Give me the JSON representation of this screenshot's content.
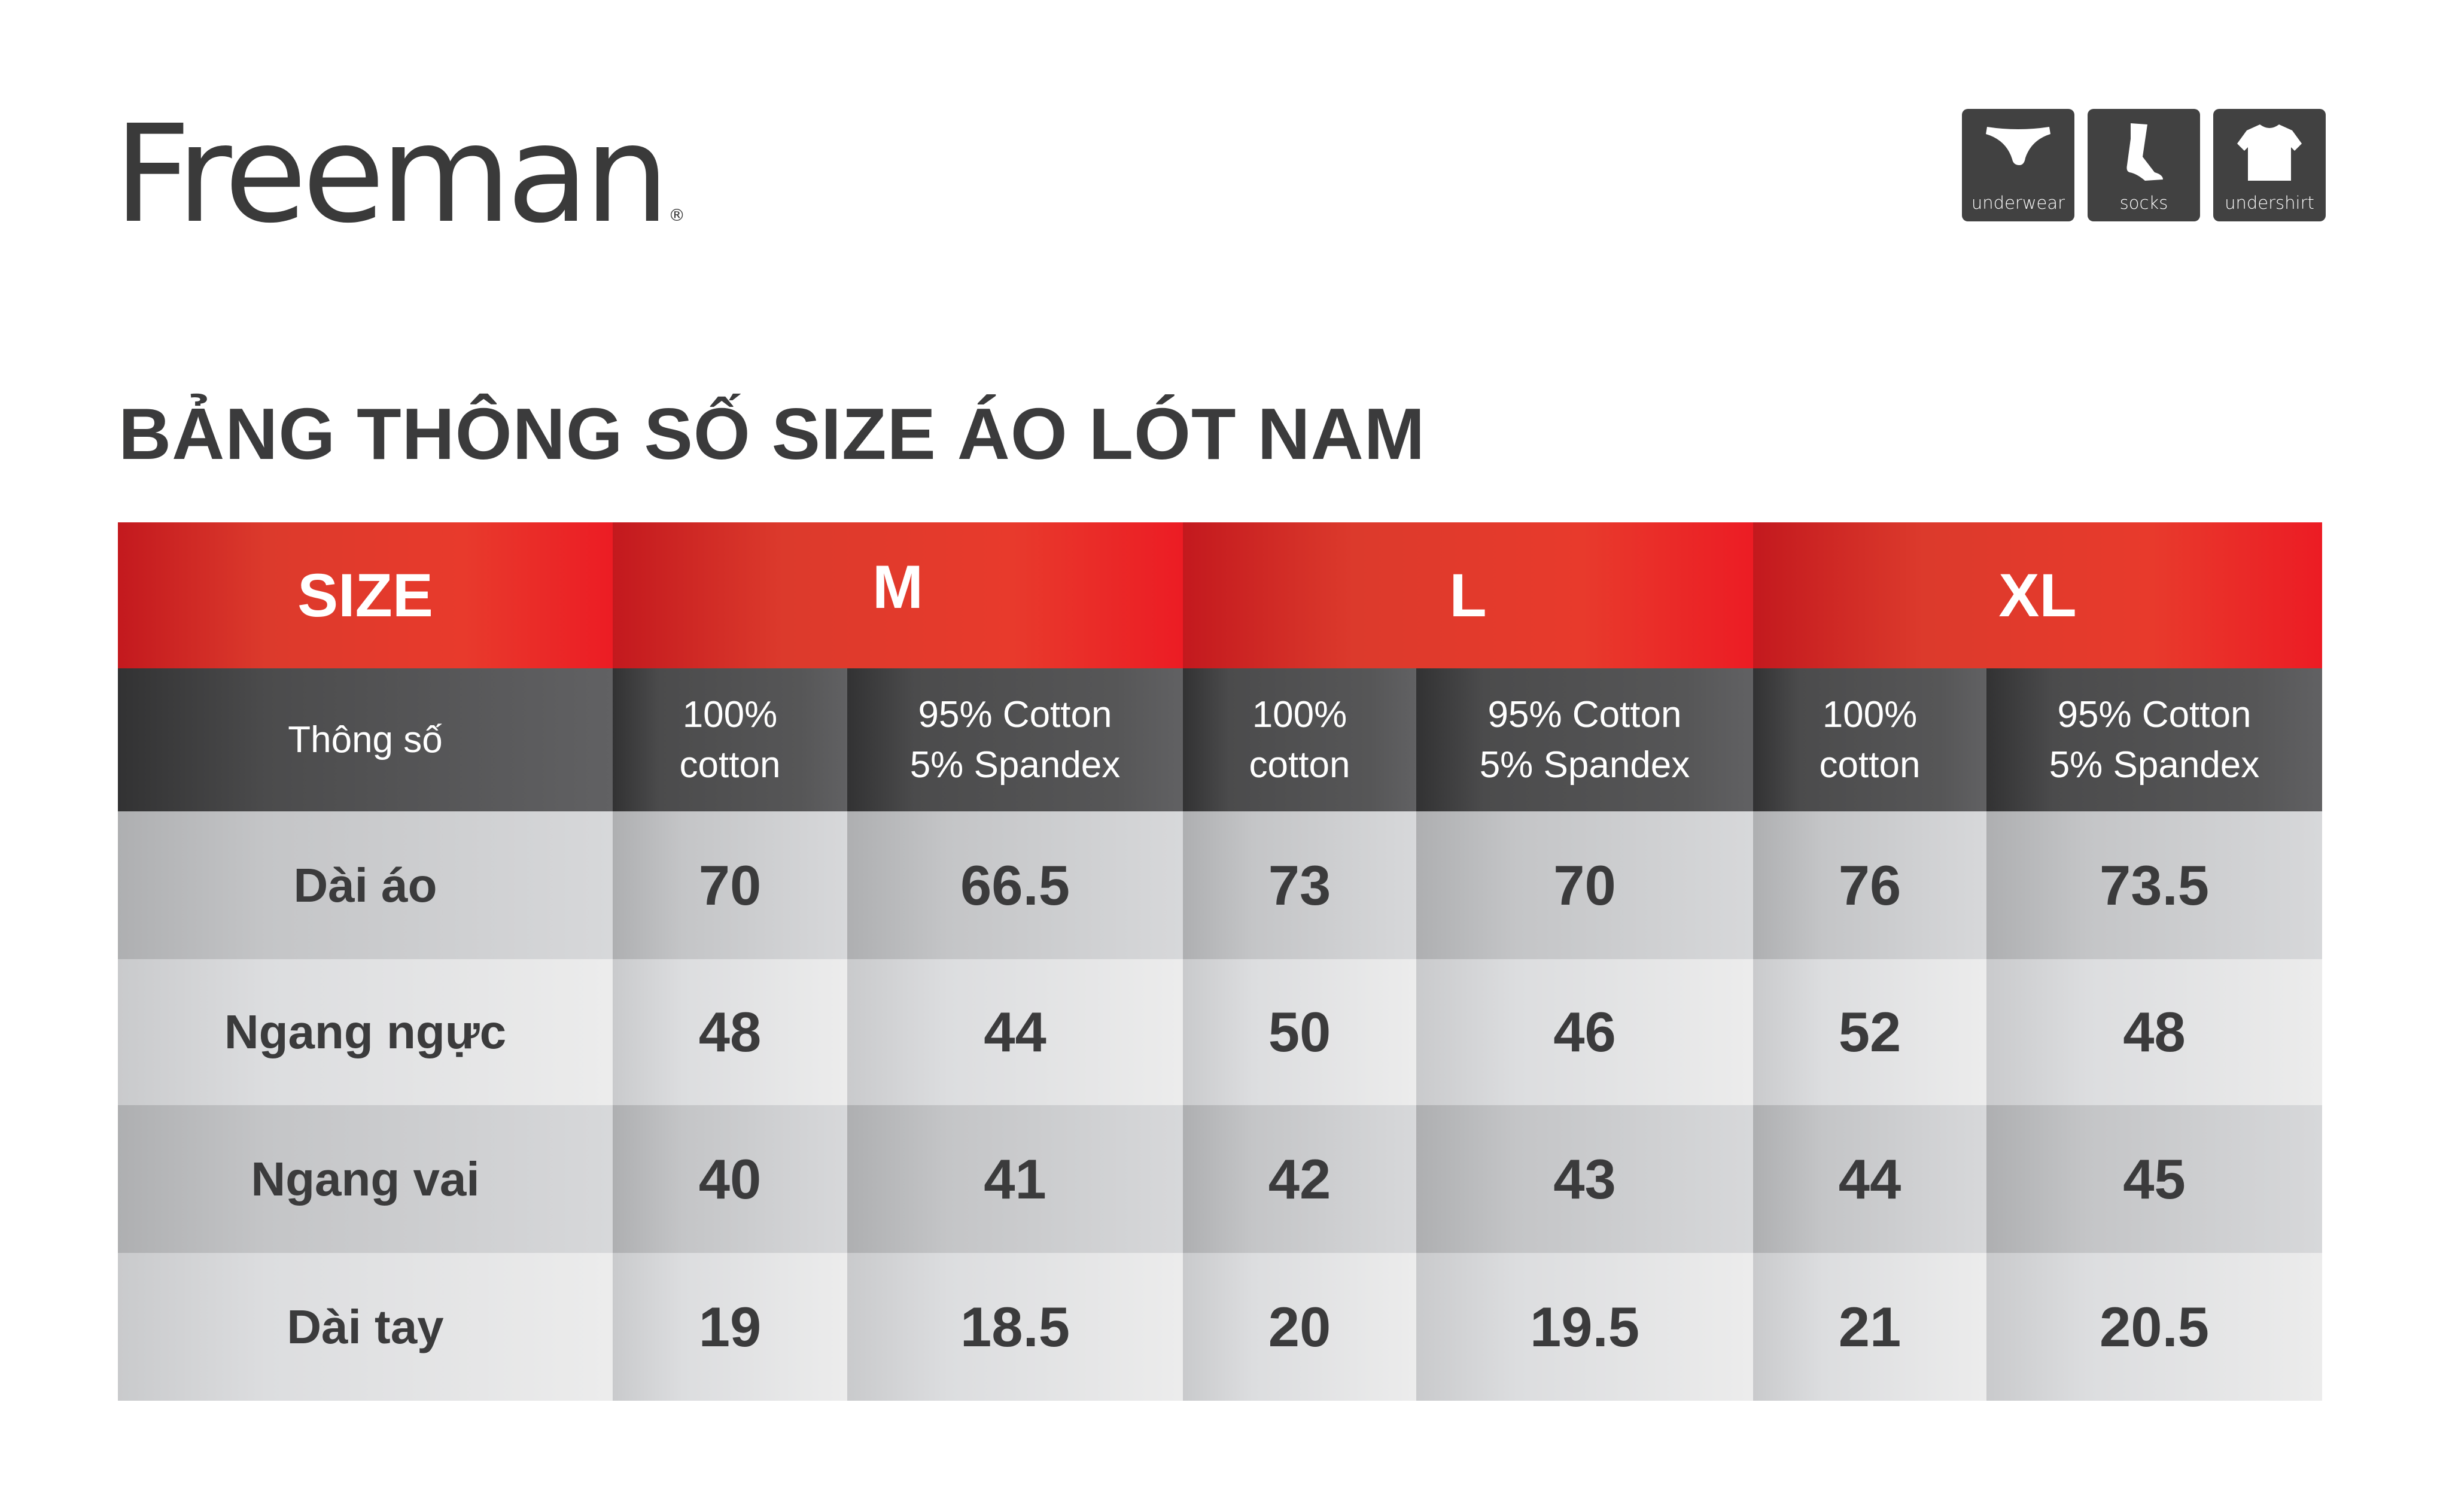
{
  "brand": {
    "logo": "Freeman",
    "registered": "®"
  },
  "categories": [
    {
      "icon": "underwear-icon",
      "label": "underwear"
    },
    {
      "icon": "socks-icon",
      "label": "socks"
    },
    {
      "icon": "undershirt-icon",
      "label": "undershirt"
    }
  ],
  "title": "BẢNG THÔNG SỐ SIZE ÁO LÓT NAM",
  "colors": {
    "header_red": "#e03a2c",
    "subheader_dark": "#4b4b4c",
    "text": "#3b3b3c"
  },
  "table": {
    "size_label": "SIZE",
    "sizes": [
      "M",
      "L",
      "XL"
    ],
    "spec_label": "Thông số",
    "materials": [
      {
        "line1": "100%",
        "line2": "cotton"
      },
      {
        "line1": "95% Cotton",
        "line2": "5% Spandex"
      }
    ],
    "rows": [
      {
        "label": "Dài áo",
        "values": [
          "70",
          "66.5",
          "73",
          "70",
          "76",
          "73.5"
        ]
      },
      {
        "label": "Ngang ngực",
        "values": [
          "48",
          "44",
          "50",
          "46",
          "52",
          "48"
        ]
      },
      {
        "label": "Ngang vai",
        "values": [
          "40",
          "41",
          "42",
          "43",
          "44",
          "45"
        ]
      },
      {
        "label": "Dài tay",
        "values": [
          "19",
          "18.5",
          "20",
          "19.5",
          "21",
          "20.5"
        ]
      }
    ]
  }
}
